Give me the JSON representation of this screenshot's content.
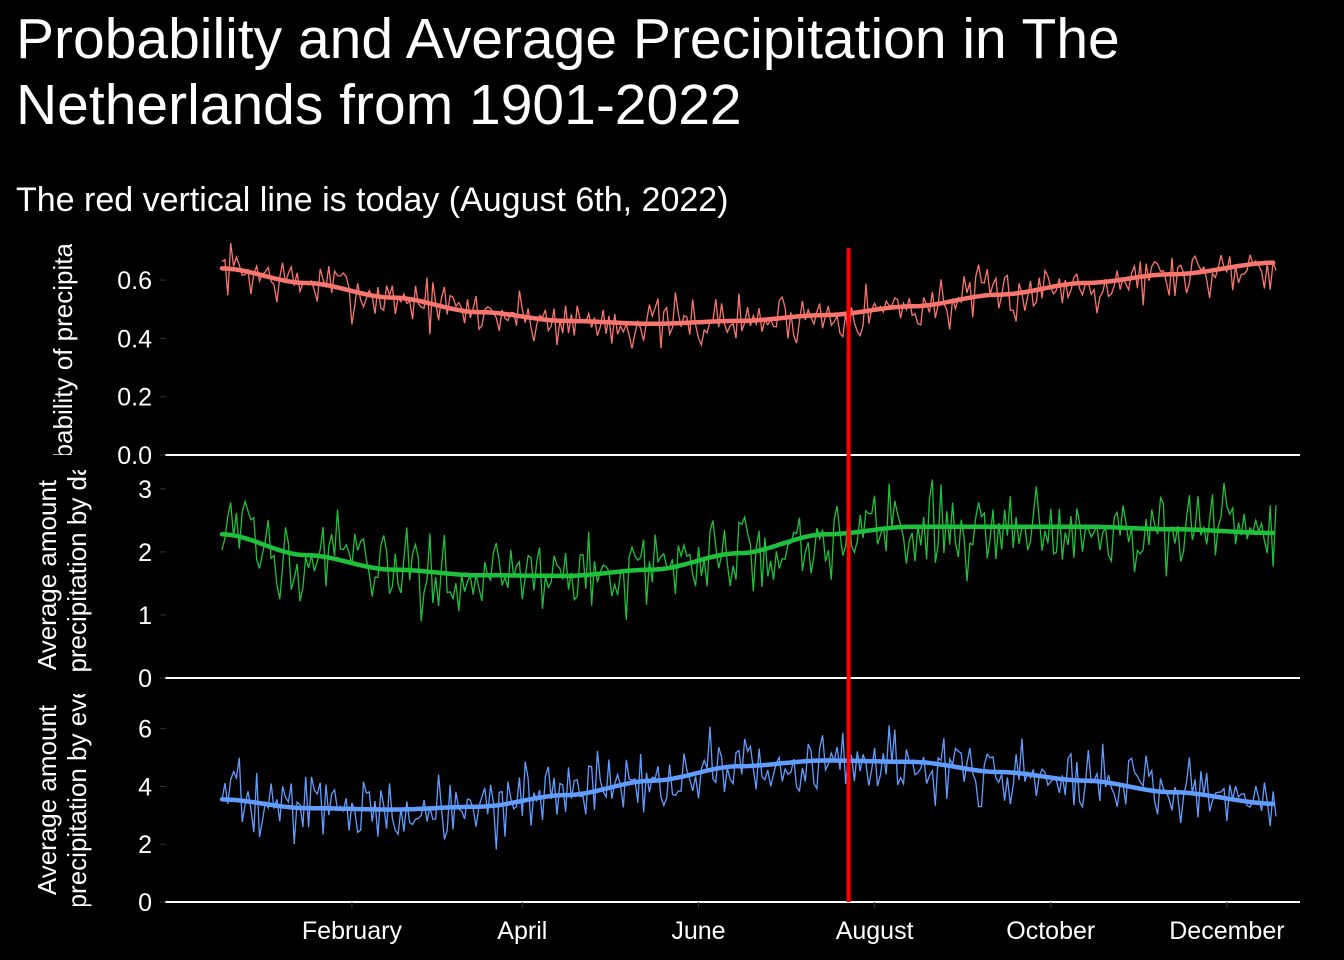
{
  "chart_title": "Probability and Average Precipitation in The Netherlands from 1901-2022",
  "chart_subtitle": "The red vertical line is today (August 6th, 2022)",
  "colors": {
    "background": "#000000",
    "text": "#ffffff",
    "today_line": "#ff0000",
    "probability": "#f8766d",
    "amount_by_day": "#1fc03c",
    "amount_by_event": "#619cff"
  },
  "chart_data": {
    "type": "line",
    "x_axis": {
      "tick_labels": [
        "February",
        "April",
        "June",
        "August",
        "October",
        "December"
      ],
      "tick_day_of_year": [
        46,
        105,
        166,
        227,
        288,
        349
      ],
      "domain_day_of_year": [
        1,
        366
      ]
    },
    "today_day_of_year": 218,
    "panels": [
      {
        "id": "probability",
        "ylabel_lines": [
          "Probability of precipitation"
        ],
        "ylim": [
          0,
          0.71
        ],
        "yticks": [
          0,
          0.2,
          0.4,
          0.6
        ],
        "ytick_labels": [
          "0.0",
          "0.2",
          "0.4",
          "0.6"
        ],
        "smooth": {
          "day": [
            1,
            30,
            60,
            90,
            120,
            150,
            180,
            210,
            240,
            270,
            300,
            330,
            366
          ],
          "value": [
            0.64,
            0.59,
            0.54,
            0.49,
            0.46,
            0.45,
            0.46,
            0.48,
            0.51,
            0.55,
            0.59,
            0.62,
            0.66
          ]
        },
        "noise_amplitude": 0.045
      },
      {
        "id": "amount_by_day",
        "ylabel_lines": [
          "Average amount",
          "of precipitation by day"
        ],
        "ylim": [
          0,
          3.3
        ],
        "yticks": [
          0,
          1,
          2,
          3
        ],
        "ytick_labels": [
          "0",
          "1",
          "2",
          "3"
        ],
        "smooth": {
          "day": [
            1,
            30,
            60,
            90,
            120,
            150,
            180,
            210,
            240,
            270,
            300,
            330,
            366
          ],
          "value": [
            2.28,
            1.95,
            1.72,
            1.63,
            1.62,
            1.72,
            1.98,
            2.28,
            2.4,
            2.4,
            2.4,
            2.36,
            2.3
          ]
        },
        "noise_amplitude": 0.33
      },
      {
        "id": "amount_by_event",
        "ylabel_lines": [
          "Average amount",
          "of precipitation by event"
        ],
        "ylim": [
          0,
          7.2
        ],
        "yticks": [
          0,
          2,
          4,
          6
        ],
        "ytick_labels": [
          "0",
          "2",
          "4",
          "6"
        ],
        "smooth": {
          "day": [
            1,
            30,
            60,
            90,
            120,
            150,
            180,
            210,
            240,
            270,
            300,
            330,
            366
          ],
          "value": [
            3.55,
            3.25,
            3.2,
            3.3,
            3.7,
            4.2,
            4.7,
            4.9,
            4.85,
            4.5,
            4.2,
            3.8,
            3.4
          ]
        },
        "noise_amplitude": 0.6
      }
    ]
  }
}
